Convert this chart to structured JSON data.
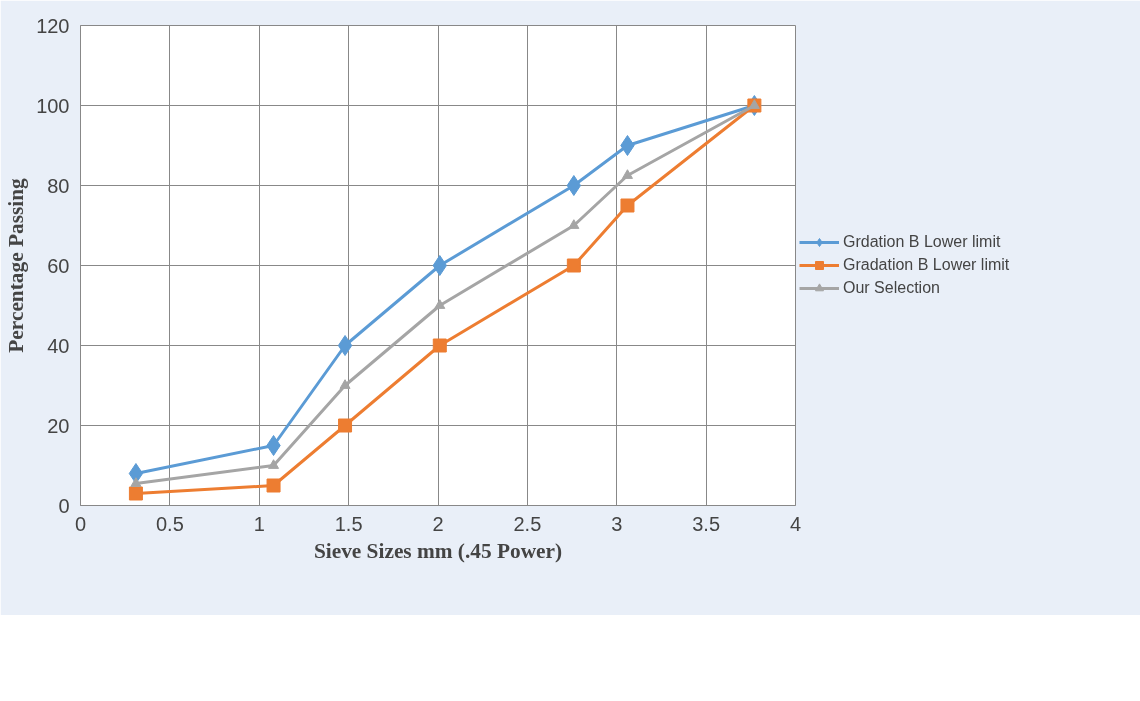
{
  "chart_data": {
    "type": "line",
    "xlabel": "Sieve Sizes mm (.45 Power)",
    "ylabel": "Percentage Passing",
    "x": [
      0.31,
      1.08,
      1.48,
      2.01,
      2.76,
      3.06,
      3.77
    ],
    "series": [
      {
        "name": "Grdation B Lower limit",
        "color": "#5b9bd5",
        "marker": "diamond",
        "values": [
          8,
          15,
          40,
          60,
          80,
          90,
          100
        ]
      },
      {
        "name": "Gradation B Lower limit",
        "color": "#ed7d31",
        "marker": "square",
        "values": [
          3,
          5,
          20,
          40,
          60,
          75,
          100
        ]
      },
      {
        "name": "Our Selection",
        "color": "#a5a5a5",
        "marker": "triangle",
        "values": [
          5.5,
          10,
          30,
          50,
          70,
          82.5,
          100
        ]
      }
    ],
    "xlim": [
      0,
      4
    ],
    "xticks": [
      0,
      0.5,
      1,
      1.5,
      2,
      2.5,
      3,
      3.5,
      4
    ],
    "ylim": [
      0,
      120
    ],
    "yticks": [
      0,
      20,
      40,
      60,
      80,
      100,
      120
    ],
    "grid": true,
    "legend": "right",
    "line_style": "solid"
  }
}
